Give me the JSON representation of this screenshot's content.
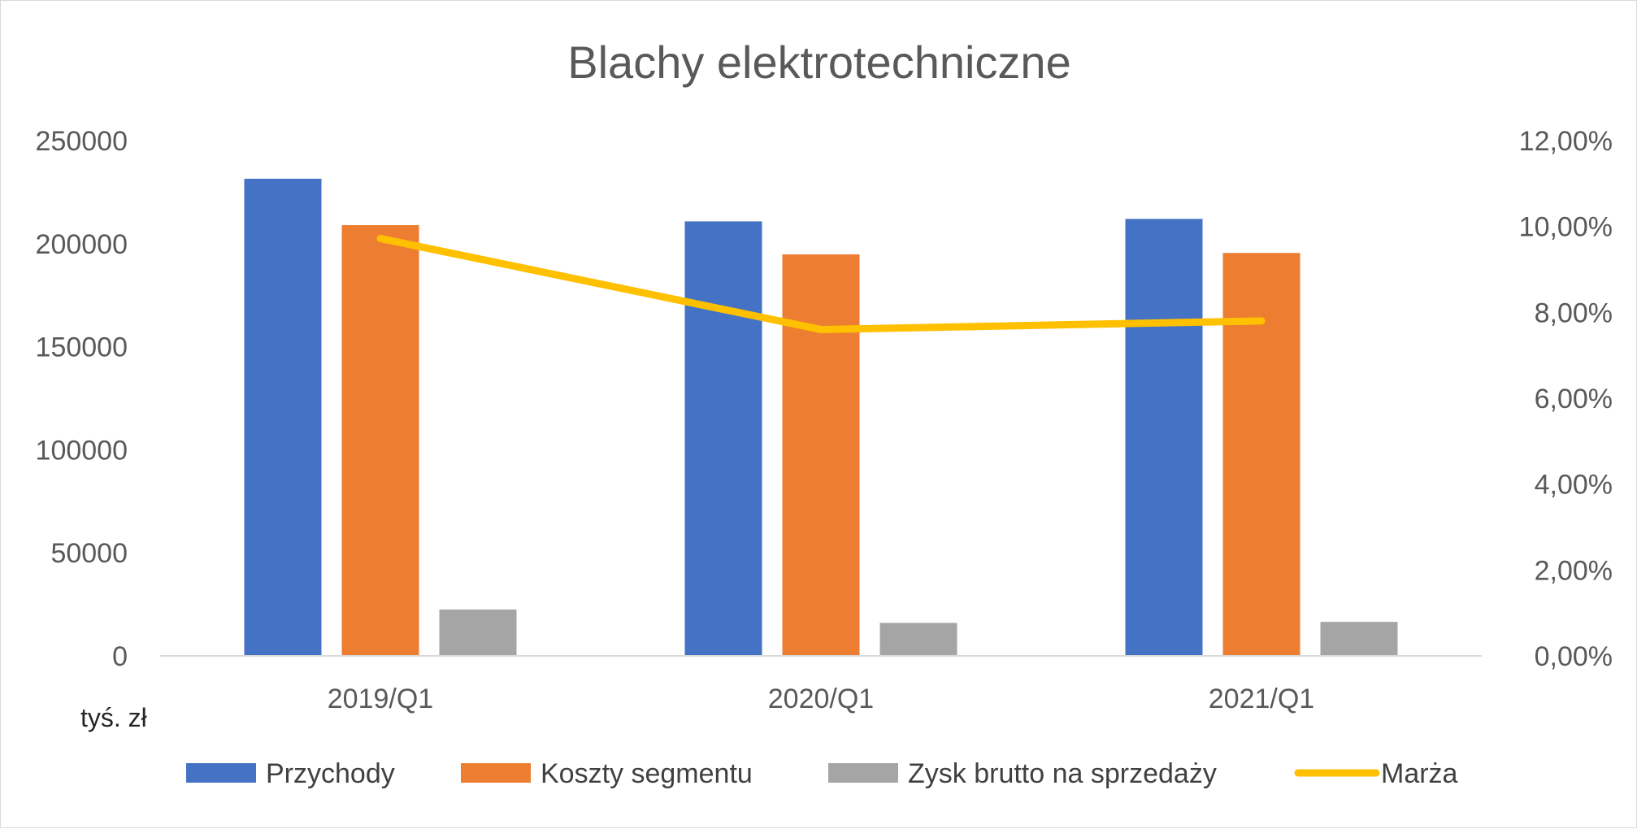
{
  "chart_data": {
    "type": "bar",
    "title": "Blachy elektrotechniczne",
    "unit_label": "tyś. zł",
    "categories": [
      "2019/Q1",
      "2020/Q1",
      "2021/Q1"
    ],
    "series": [
      {
        "name": "Przychody",
        "type": "bar",
        "axis": "left",
        "color": "#4472C4",
        "values": [
          231500,
          210800,
          212000
        ]
      },
      {
        "name": "Koszty segmentu",
        "type": "bar",
        "axis": "left",
        "color": "#ED7D31",
        "values": [
          209000,
          194800,
          195500
        ]
      },
      {
        "name": "Zysk brutto na sprzedaży",
        "type": "bar",
        "axis": "left",
        "color": "#A5A5A5",
        "values": [
          22500,
          16000,
          16500
        ]
      },
      {
        "name": "Marża",
        "type": "line",
        "axis": "right",
        "color": "#FFC000",
        "values": [
          0.0972,
          0.076,
          0.078
        ]
      }
    ],
    "y_left": {
      "min": 0,
      "max": 250000,
      "step": 50000,
      "tick_labels": [
        "0",
        "50000",
        "100000",
        "150000",
        "200000",
        "250000"
      ]
    },
    "y_right": {
      "min": 0,
      "max": 0.12,
      "step": 0.02,
      "tick_labels": [
        "0,00%",
        "2,00%",
        "4,00%",
        "6,00%",
        "8,00%",
        "10,00%",
        "12,00%"
      ]
    },
    "grid": false,
    "legend_position": "bottom"
  }
}
